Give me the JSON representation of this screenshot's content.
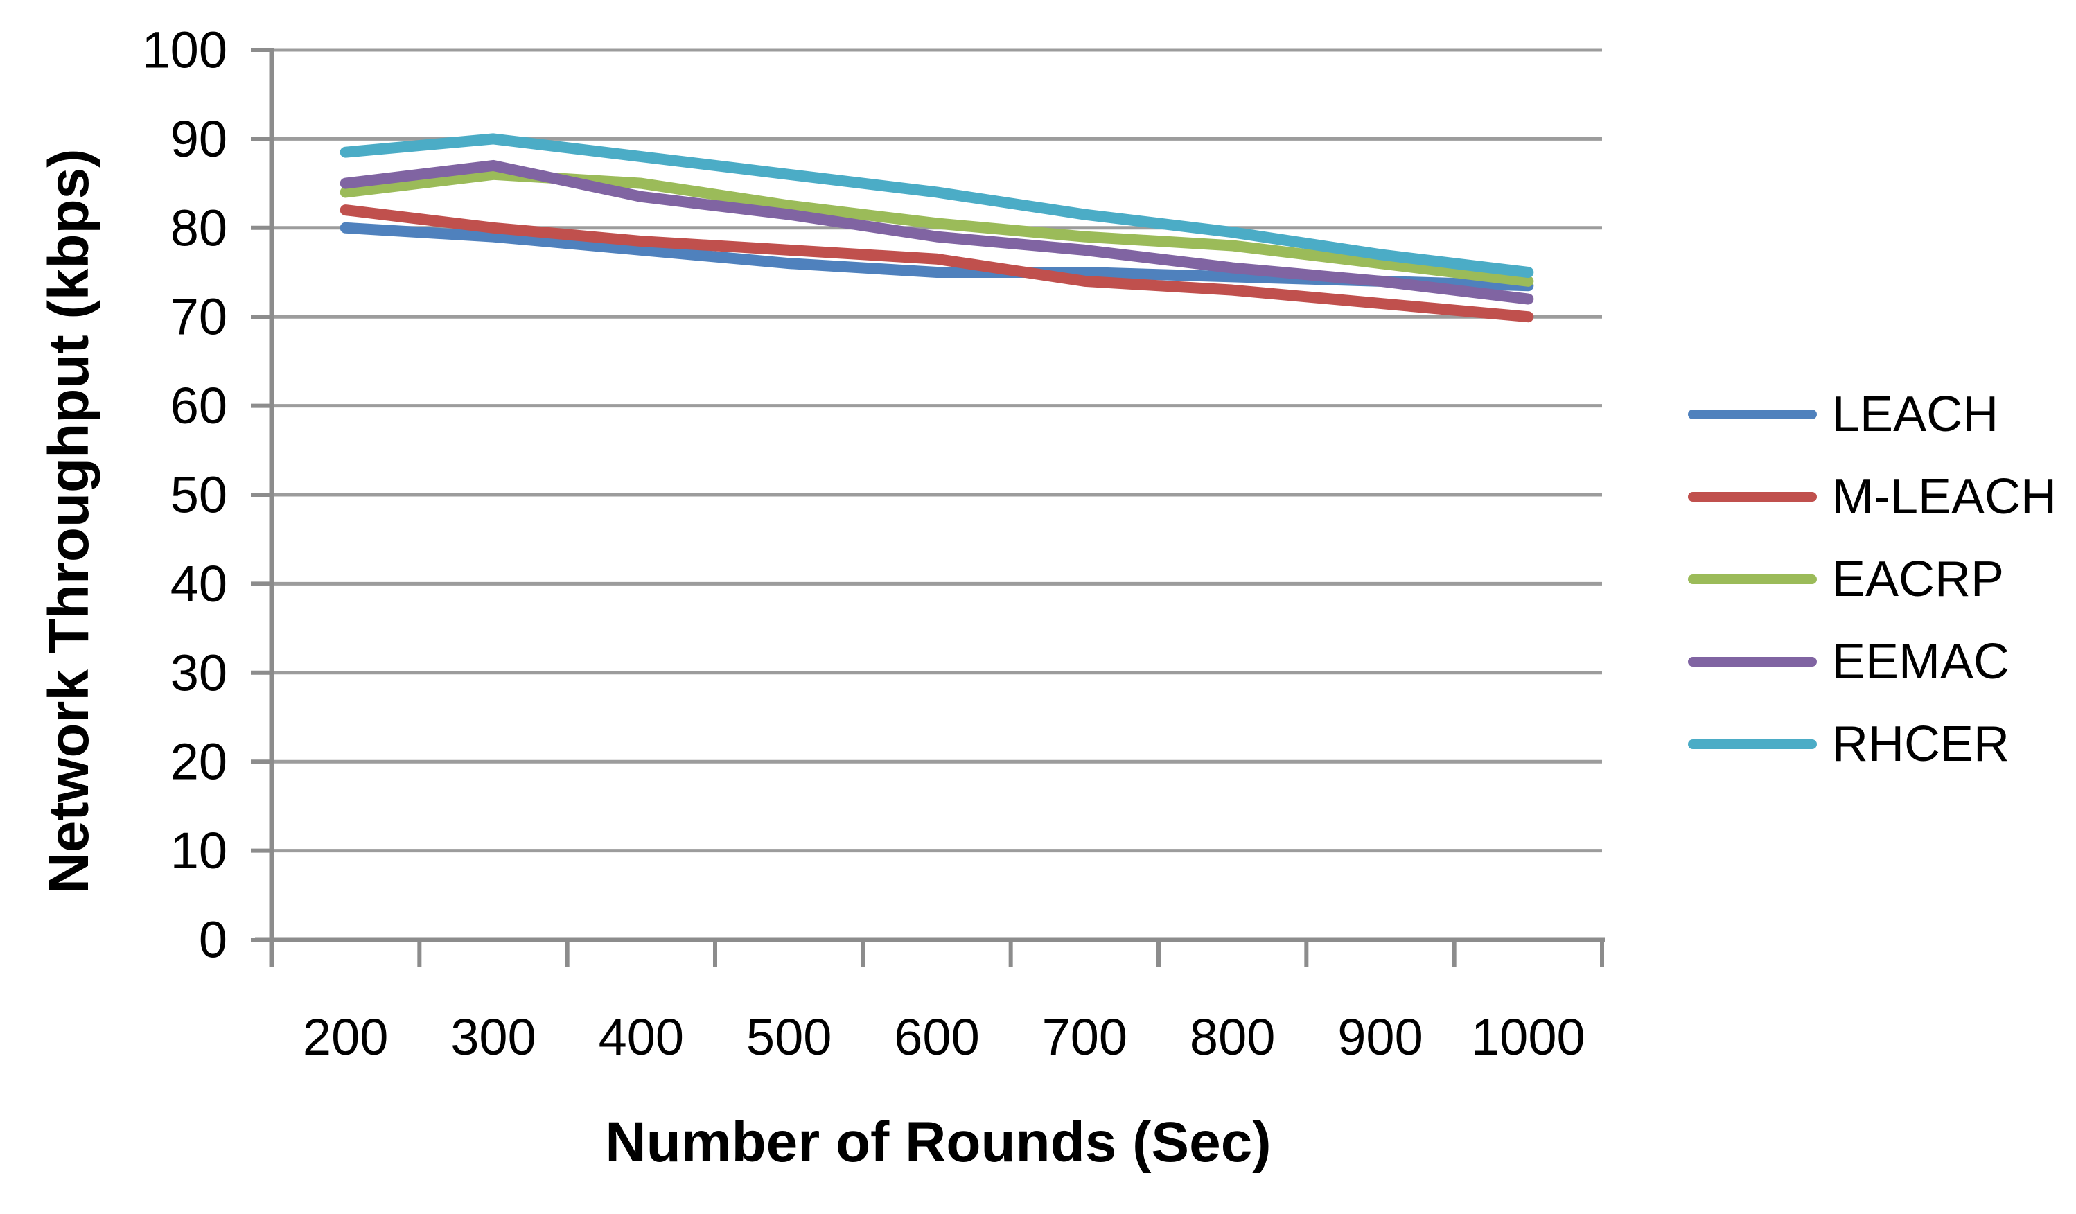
{
  "chart_data": {
    "type": "line",
    "title": "",
    "xlabel": "Number of Rounds (Sec)",
    "ylabel": "Network Throughput (kbps)",
    "categories": [
      200,
      300,
      400,
      500,
      600,
      700,
      800,
      900,
      1000
    ],
    "series": [
      {
        "name": "LEACH",
        "color": "#4F81BD",
        "values": [
          80,
          79,
          77.5,
          76,
          75,
          75,
          74.5,
          74,
          73.5
        ]
      },
      {
        "name": "M-LEACH",
        "color": "#C0504D",
        "values": [
          82,
          80,
          78.5,
          77.5,
          76.5,
          74,
          73,
          71.5,
          70
        ]
      },
      {
        "name": "EACRP",
        "color": "#9BBB59",
        "values": [
          84,
          86,
          85,
          82.5,
          80.5,
          79,
          78,
          76,
          74
        ]
      },
      {
        "name": "EEMAC",
        "color": "#8064A2",
        "values": [
          85,
          87,
          83.5,
          81.5,
          79,
          77.5,
          75.5,
          74,
          72
        ]
      },
      {
        "name": "RHCER",
        "color": "#4BACC6",
        "values": [
          88.5,
          90,
          88,
          86,
          84,
          81.5,
          79.5,
          77,
          75
        ]
      }
    ],
    "ylim": [
      0,
      100
    ],
    "ytick_step": 10,
    "grid": true,
    "gridlines": "horizontal",
    "legend_position": "right",
    "colors": {
      "grid": "#9C9C9C",
      "axis": "#8C8C8C",
      "text": "#000000",
      "background": "#FFFFFF"
    }
  }
}
